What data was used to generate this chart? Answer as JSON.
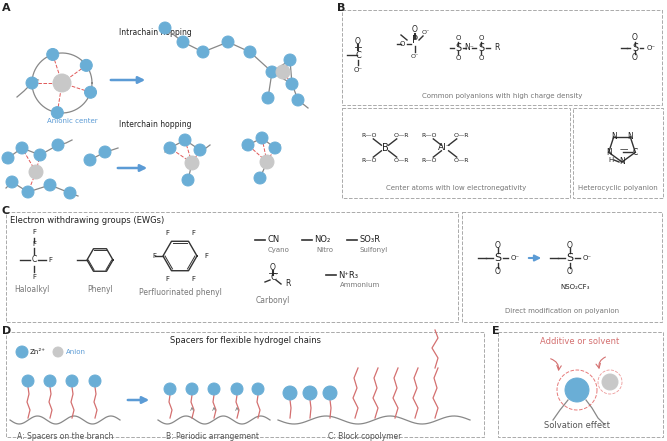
{
  "fig_width": 6.67,
  "fig_height": 4.41,
  "dpi": 100,
  "bg_color": "#ffffff",
  "blue_node": "#6aaed6",
  "gray_node": "#c8c8c8",
  "red_dashed": "#e05858",
  "arrow_blue": "#5b9bd5",
  "chain_color": "#888888",
  "pink_chain": "#d47070",
  "text_dark": "#222222",
  "text_gray": "#777777",
  "box_dash_color": "#aaaaaa",
  "label_fs": 8,
  "body_fs": 6,
  "small_fs": 5.5,
  "tiny_fs": 5
}
